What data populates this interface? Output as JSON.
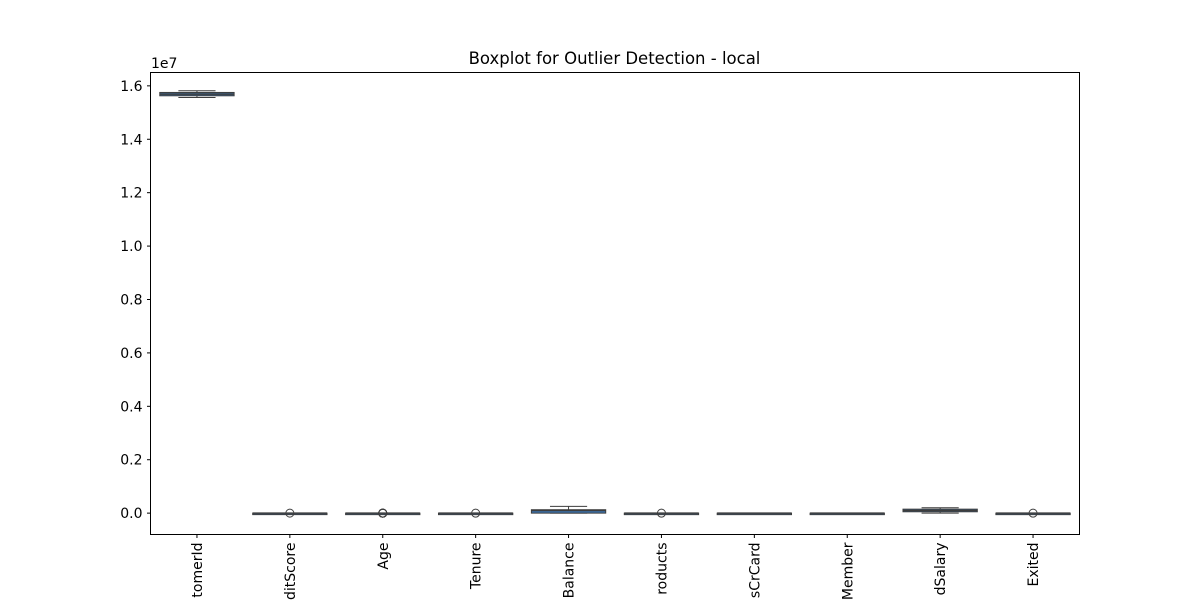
{
  "chart_data": {
    "type": "box",
    "title": "Boxplot for Outlier Detection - local",
    "xlabel": "",
    "ylabel": "",
    "y_scale_label": "1e7",
    "ylim": [
      -0.08,
      1.65
    ],
    "yticks": [
      0.0,
      0.2,
      0.4,
      0.6,
      0.8,
      1.0,
      1.2,
      1.4,
      1.6
    ],
    "ytick_labels": [
      "0.0",
      "0.2",
      "0.4",
      "0.6",
      "0.8",
      "1.0",
      "1.2",
      "1.4",
      "1.6"
    ],
    "grid": false,
    "categories": [
      "tomerId",
      "ditScore",
      "Age",
      "Tenure",
      "Balance",
      "roducts",
      "sCrCard",
      "Member",
      "dSalary",
      "Exited"
    ],
    "boxes": [
      {
        "min": 1.5566,
        "q1": 1.5628,
        "median": 1.5691,
        "q3": 1.5753,
        "max": 1.5816,
        "outliers": []
      },
      {
        "min": 3.83e-05,
        "q1": 5.84e-05,
        "median": 6.52e-05,
        "q3": 7.18e-05,
        "max": 8.5e-05,
        "outliers": [
          3.5e-05
        ]
      },
      {
        "min": 1.8e-06,
        "q1": 3.2e-06,
        "median": 3.7e-06,
        "q3": 4.4e-06,
        "max": 6.2e-06,
        "outliers": [
          6.5e-06,
          7e-06,
          7.5e-06,
          8e-06,
          8.5e-06,
          9.2e-06
        ]
      },
      {
        "min": 0.0,
        "q1": 3e-07,
        "median": 5e-07,
        "q3": 7e-07,
        "max": 1e-06,
        "outliers": [
          0.0
        ]
      },
      {
        "min": 0.0,
        "q1": 0.0,
        "median": 0.0097,
        "q3": 0.0128,
        "max": 0.0251,
        "outliers": []
      },
      {
        "min": 1e-07,
        "q1": 1e-07,
        "median": 1e-07,
        "q3": 2e-07,
        "max": 3e-07,
        "outliers": [
          4e-07
        ]
      },
      {
        "min": 0.0,
        "q1": 0.0,
        "median": 1e-07,
        "q3": 1e-07,
        "max": 1e-07,
        "outliers": []
      },
      {
        "min": 0.0,
        "q1": 0.0,
        "median": 1e-07,
        "q3": 1e-07,
        "max": 1e-07,
        "outliers": []
      },
      {
        "min": 1.2e-06,
        "q1": 0.0051,
        "median": 0.01,
        "q3": 0.0149,
        "max": 0.02,
        "outliers": []
      },
      {
        "min": 0.0,
        "q1": 0.0,
        "median": 0.0,
        "q3": 0.0,
        "max": 0.0,
        "outliers": [
          1e-07
        ]
      }
    ],
    "box_color": "#3b73ae",
    "edge_color": "#3d3d3d"
  }
}
